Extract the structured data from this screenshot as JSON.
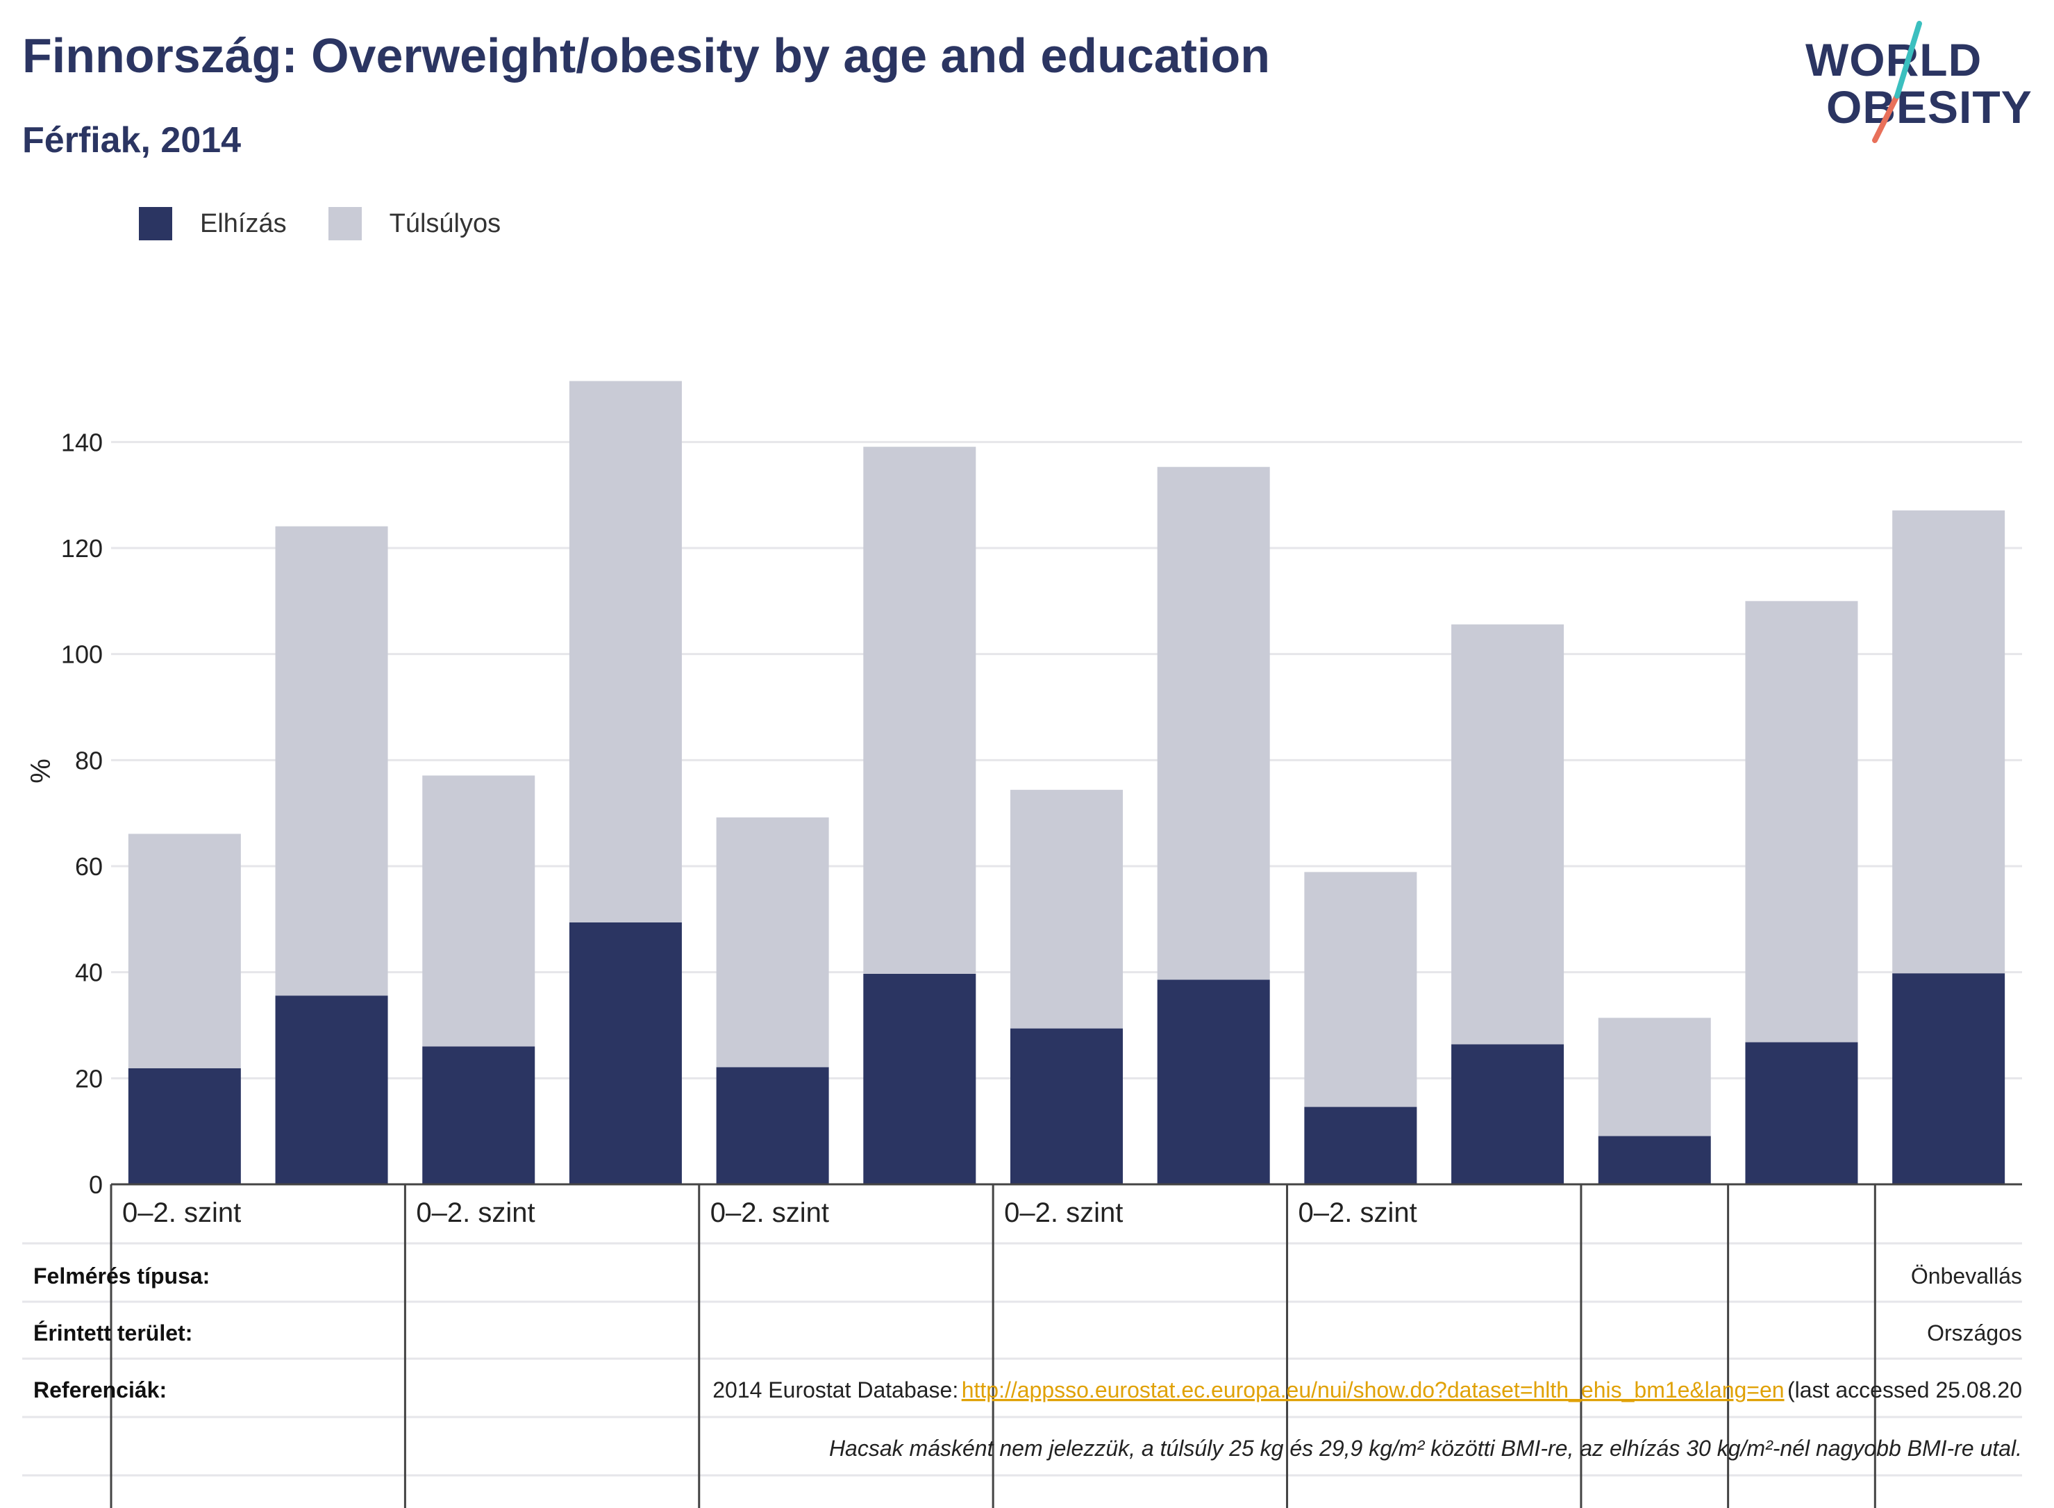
{
  "header": {
    "title": "Finnország: Overweight/obesity by age and education",
    "subtitle": "Férfiak, 2014"
  },
  "logo": {
    "line1": "WORLD",
    "line2": "OBESITY",
    "accent_colors": [
      "#3bbfbf",
      "#e8705a"
    ]
  },
  "legend": {
    "items": [
      {
        "label": "Elhízás",
        "color": "#2b3562"
      },
      {
        "label": "Túlsúlyos",
        "color": "#c9cbd6"
      }
    ]
  },
  "chart_data": {
    "type": "bar",
    "stacked": true,
    "ylabel": "%",
    "ylim": [
      0,
      150
    ],
    "yticks": [
      0,
      20,
      40,
      60,
      80,
      100,
      120,
      140
    ],
    "grid": true,
    "categories": [
      "",
      "",
      "",
      "",
      "",
      "",
      "",
      "",
      "",
      "",
      "",
      "",
      ""
    ],
    "group_labels": [
      "0–2. szint",
      "0–2. szint",
      "0–2. szint",
      "0–2. szint",
      "0–2. szint",
      "",
      "",
      ""
    ],
    "series": [
      {
        "name": "Elhízás",
        "color": "#2b3562",
        "values": [
          21.9,
          35.6,
          26.0,
          49.4,
          22.1,
          39.7,
          29.4,
          38.6,
          14.6,
          26.4,
          9.1,
          26.8,
          39.8
        ]
      },
      {
        "name": "Túlsúlyos",
        "color": "#c9cbd6",
        "values": [
          44.2,
          88.5,
          51.1,
          102.1,
          47.1,
          99.4,
          45.0,
          96.7,
          44.3,
          79.2,
          22.3,
          83.2,
          87.3
        ]
      }
    ]
  },
  "info_table": {
    "survey_type_label": "Felmérés típusa:",
    "survey_type_value": "Önbevallás",
    "area_label": "Érintett terület:",
    "area_value": "Országos",
    "references_label": "Referenciák:",
    "reference_prefix": "2014 Eurostat Database:",
    "reference_link": "http://appsso.eurostat.ec.europa.eu/nui/show.do?dataset=hlth_ehis_bm1e&lang=en",
    "reference_suffix": " (last accessed 25.08.20",
    "note": "Hacsak másként nem jelezzük, a túlsúly 25 kg és 29,9 kg/m² közötti BMI-re, az elhízás 30 kg/m²-nél nagyobb BMI-re utal."
  }
}
